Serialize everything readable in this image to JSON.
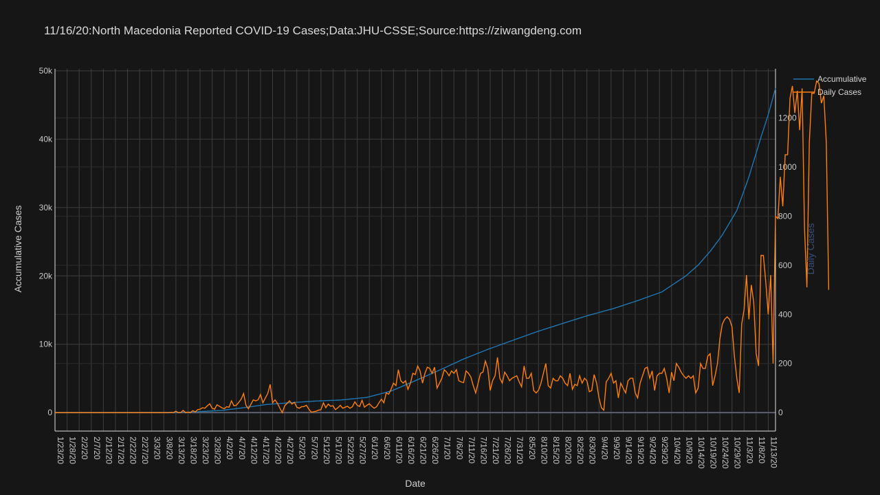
{
  "chart_data": {
    "type": "line",
    "title": "11/16/20:North Macedonia Reported COVID-19 Cases;Data:JHU-CSSE;Source:https://ziwangdeng.com",
    "xlabel": "Date",
    "ylabel": "Accumulative Cases",
    "y2label": "Daily Cases",
    "x_start": "1/23/20",
    "x_end": "11/16/20",
    "x_tick_labels": [
      "1/23/20",
      "1/28/20",
      "2/2/20",
      "2/7/20",
      "2/12/20",
      "2/17/20",
      "2/22/20",
      "2/27/20",
      "3/3/20",
      "3/8/20",
      "3/13/20",
      "3/18/20",
      "3/23/20",
      "3/28/20",
      "4/2/20",
      "4/7/20",
      "4/12/20",
      "4/17/20",
      "4/22/20",
      "4/27/20",
      "5/2/20",
      "5/7/20",
      "5/12/20",
      "5/17/20",
      "5/22/20",
      "5/27/20",
      "6/1/20",
      "6/6/20",
      "6/11/20",
      "6/16/20",
      "6/21/20",
      "6/26/20",
      "7/1/20",
      "7/6/20",
      "7/11/20",
      "7/16/20",
      "7/21/20",
      "7/26/20",
      "7/31/20",
      "8/5/20",
      "8/10/20",
      "8/15/20",
      "8/20/20",
      "8/25/20",
      "8/30/20",
      "9/4/20",
      "9/9/20",
      "9/14/20",
      "9/19/20",
      "9/24/20",
      "9/29/20",
      "10/4/20",
      "10/9/20",
      "10/14/20",
      "10/19/20",
      "10/24/20",
      "10/29/20",
      "11/3/20",
      "11/8/20",
      "11/13/20"
    ],
    "y_ticks": [
      0,
      10000,
      20000,
      30000,
      40000,
      50000
    ],
    "y_tick_labels": [
      "0",
      "10k",
      "20k",
      "30k",
      "40k",
      "50k"
    ],
    "ylim": [
      -2700,
      50300
    ],
    "y2_ticks": [
      0,
      200,
      400,
      600,
      800,
      1000,
      1200
    ],
    "y2_tick_labels": [
      "0",
      "200",
      "400",
      "600",
      "800",
      "1000",
      "1200"
    ],
    "y2lim": [
      -75,
      1400
    ],
    "grid": true,
    "legend_position": "top-right",
    "series": [
      {
        "name": "Accumulative",
        "axis": "y",
        "color": "#1f77b4",
        "key_points": [
          [
            "1/23/20",
            0
          ],
          [
            "2/26/20",
            0
          ],
          [
            "3/13/20",
            14
          ],
          [
            "3/20/20",
            85
          ],
          [
            "4/1/20",
            329
          ],
          [
            "4/10/20",
            711
          ],
          [
            "4/20/20",
            1207
          ],
          [
            "4/30/20",
            1465
          ],
          [
            "5/10/20",
            1694
          ],
          [
            "5/20/20",
            1839
          ],
          [
            "5/31/20",
            2226
          ],
          [
            "6/10/20",
            3152
          ],
          [
            "6/20/20",
            4664
          ],
          [
            "6/30/20",
            6209
          ],
          [
            "7/10/20",
            7837
          ],
          [
            "7/20/20",
            9249
          ],
          [
            "7/31/20",
            10657
          ],
          [
            "8/10/20",
            11914
          ],
          [
            "8/20/20",
            13048
          ],
          [
            "8/31/20",
            14262
          ],
          [
            "9/10/20",
            15223
          ],
          [
            "9/20/20",
            16386
          ],
          [
            "9/30/20",
            17655
          ],
          [
            "10/10/20",
            20016
          ],
          [
            "10/15/20",
            21574
          ],
          [
            "10/20/20",
            23591
          ],
          [
            "10/25/20",
            25975
          ],
          [
            "10/31/20",
            29567
          ],
          [
            "11/5/20",
            34470
          ],
          [
            "11/10/20",
            40289
          ],
          [
            "11/13/20",
            43570
          ],
          [
            "11/16/20",
            47443
          ]
        ]
      },
      {
        "name": "Daily Cases",
        "axis": "y2",
        "color": "#ff7f0e",
        "values": [
          0,
          0,
          0,
          0,
          0,
          0,
          0,
          0,
          0,
          0,
          0,
          0,
          0,
          0,
          0,
          0,
          0,
          0,
          0,
          0,
          0,
          0,
          0,
          0,
          0,
          0,
          0,
          0,
          0,
          0,
          0,
          0,
          0,
          0,
          0,
          0,
          0,
          0,
          0,
          0,
          0,
          0,
          0,
          0,
          0,
          0,
          0,
          0,
          1,
          0,
          6,
          0,
          0,
          9,
          0,
          2,
          0,
          8,
          3,
          12,
          14,
          20,
          18,
          28,
          36,
          18,
          14,
          32,
          26,
          20,
          16,
          24,
          22,
          48,
          28,
          30,
          42,
          55,
          78,
          30,
          16,
          34,
          52,
          48,
          52,
          74,
          40,
          60,
          78,
          115,
          40,
          52,
          38,
          18,
          0,
          28,
          38,
          48,
          35,
          42,
          22,
          18,
          24,
          25,
          30,
          14,
          2,
          4,
          6,
          10,
          12,
          40,
          20,
          35,
          26,
          28,
          12,
          20,
          30,
          18,
          22,
          26,
          18,
          24,
          44,
          30,
          25,
          50,
          22,
          30,
          36,
          26,
          18,
          24,
          40,
          55,
          40,
          80,
          75,
          95,
          120,
          110,
          175,
          130,
          120,
          130,
          95,
          120,
          160,
          155,
          190,
          170,
          120,
          160,
          185,
          180,
          160,
          185,
          100,
          120,
          140,
          175,
          165,
          150,
          170,
          160,
          175,
          130,
          125,
          122,
          170,
          160,
          145,
          110,
          80,
          120,
          160,
          165,
          210,
          180,
          90,
          130,
          150,
          225,
          140,
          120,
          165,
          150,
          130,
          140,
          145,
          150,
          125,
          105,
          190,
          140,
          140,
          160,
          90,
          80,
          92,
          120,
          160,
          200,
          110,
          100,
          140,
          130,
          130,
          150,
          140,
          120,
          110,
          160,
          95,
          115,
          110,
          150,
          120,
          140,
          130,
          85,
          90,
          155,
          120,
          60,
          20,
          10,
          125,
          140,
          160,
          120,
          130,
          60,
          120,
          100,
          80,
          130,
          140,
          140,
          80,
          60,
          120,
          150,
          180,
          185,
          140,
          170,
          90,
          150,
          160,
          160,
          180,
          140,
          80,
          165,
          130,
          200,
          185,
          165,
          150,
          140,
          150,
          140,
          150,
          80,
          100,
          200,
          180,
          180,
          230,
          240,
          110,
          150,
          200,
          300,
          360,
          380,
          390,
          380,
          350,
          230,
          140,
          80,
          360,
          420,
          560,
          380,
          520,
          450,
          240,
          190,
          640,
          640,
          530,
          400,
          560,
          200,
          800,
          790,
          960,
          840,
          1050,
          1050,
          1280,
          1330,
          1220,
          1310,
          1150,
          1320,
          750,
          510,
          1100,
          1300,
          1300,
          1350,
          1340,
          1260,
          1290,
          1100,
          500
        ]
      }
    ]
  }
}
